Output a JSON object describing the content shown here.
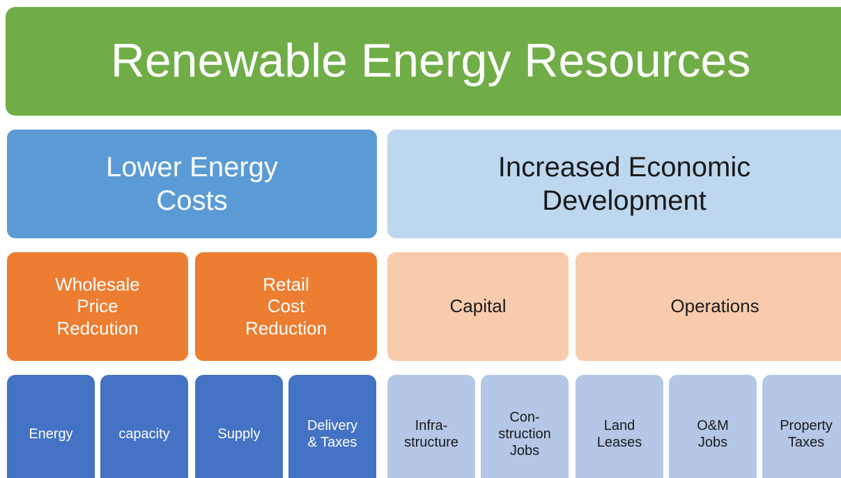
{
  "title": "Renewable Energy Resources",
  "level2": [
    {
      "label": "Lower Energy\nCosts"
    },
    {
      "label": "Increased Economic\nDevelopment"
    }
  ],
  "level3": [
    {
      "label": "Wholesale\nPrice\nRedcution"
    },
    {
      "label": "Retail\nCost\nReduction"
    },
    {
      "label": "Capital"
    },
    {
      "label": "Operations"
    }
  ],
  "level4": [
    {
      "label": "Energy"
    },
    {
      "label": "capacity"
    },
    {
      "label": "Supply"
    },
    {
      "label": "Delivery\n& Taxes"
    },
    {
      "label": "Infra-\nstructure"
    },
    {
      "label": "Con-\nstruction\nJobs"
    },
    {
      "label": "Land\nLeases"
    },
    {
      "label": "O&M\nJobs"
    },
    {
      "label": "Property\nTaxes"
    }
  ]
}
